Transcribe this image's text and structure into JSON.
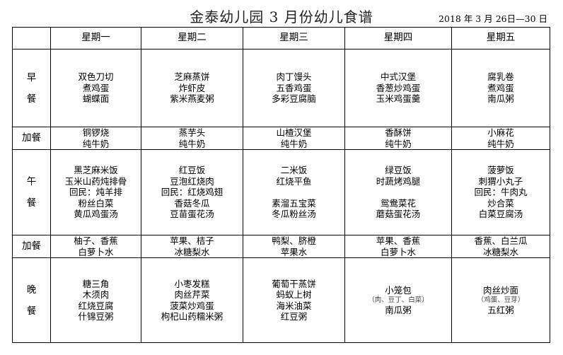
{
  "title": "金泰幼儿园 3 月份幼儿食谱",
  "date_range": "2018 年 3 月 26日—30 日",
  "days": [
    "星期一",
    "星期二",
    "星期三",
    "星期四",
    "星期五"
  ],
  "rows": [
    {
      "label": [
        "早",
        "餐"
      ],
      "cells": [
        [
          "双色刀切",
          "煮鸡蛋",
          "蝴蝶面"
        ],
        [
          "芝麻蒸饼",
          "炸虾皮",
          "紫米燕麦粥"
        ],
        [
          "肉丁馒头",
          "五香鸡蛋",
          "多彩豆腐脑"
        ],
        [
          "中式汉堡",
          "香葱炒鸡蛋",
          "玉米鸡蛋羹"
        ],
        [
          "腐乳卷",
          "煮鸡蛋",
          "南瓜粥"
        ]
      ]
    },
    {
      "label": [
        "加餐"
      ],
      "cells": [
        [
          "铜锣烧",
          "纯牛奶"
        ],
        [
          "蒸芋头",
          "纯牛奶"
        ],
        [
          "山楂汉堡",
          "纯牛奶"
        ],
        [
          "香酥饼",
          "纯牛奶"
        ],
        [
          "小麻花",
          "纯牛奶"
        ]
      ]
    },
    {
      "label": [
        "午",
        "餐"
      ],
      "cells": [
        [
          "黑芝麻米饭",
          "玉米山药炖排骨",
          "回民：炖羊排",
          "粉丝白菜",
          "黄瓜鸡蛋汤"
        ],
        [
          "红豆饭",
          "豆泡红烧肉",
          "回民：红烧鸡翅",
          "香菇冬瓜",
          "豆苗蛋花汤"
        ],
        [
          "二米饭",
          "红烧平鱼",
          "",
          "素溜五宝菜",
          "冬瓜粉丝汤"
        ],
        [
          "绿豆饭",
          "时蔬烤鸡腿",
          "",
          "鸳鸯菜花",
          "蘑菇蛋花汤"
        ],
        [
          "菠萝饭",
          "刺猬小丸子",
          "回民：牛肉丸",
          "炒合菜",
          "白菜豆腐汤"
        ]
      ]
    },
    {
      "label": [
        "加餐"
      ],
      "cells": [
        [
          "柚子、香蕉",
          "白萝卜水"
        ],
        [
          "苹果、桔子",
          "冰糖梨水"
        ],
        [
          "鸭梨、脐橙",
          "苹果水"
        ],
        [
          "苹果、香蕉",
          "白萝卜水"
        ],
        [
          "香蕉、白兰瓜",
          "冰糖梨水"
        ]
      ]
    },
    {
      "label": [
        "晚",
        "餐"
      ],
      "cells": [
        [
          "糖三角",
          "木须肉",
          "红烧豆腐",
          "什锦豆粥"
        ],
        [
          "小枣发糕",
          "肉丝芹菜",
          "菠菜炒鸡蛋",
          "枸杞山药糯米粥"
        ],
        [
          "葡萄干蒸饼",
          "蚂蚁上树",
          "海米油菜",
          "红豆粥"
        ],
        [
          "小笼包",
          "（肉、豆丁、白菜）",
          "南瓜粥"
        ],
        [
          "肉丝炒面",
          "（鸡蛋、豆芽）",
          "五红粥"
        ]
      ]
    }
  ]
}
